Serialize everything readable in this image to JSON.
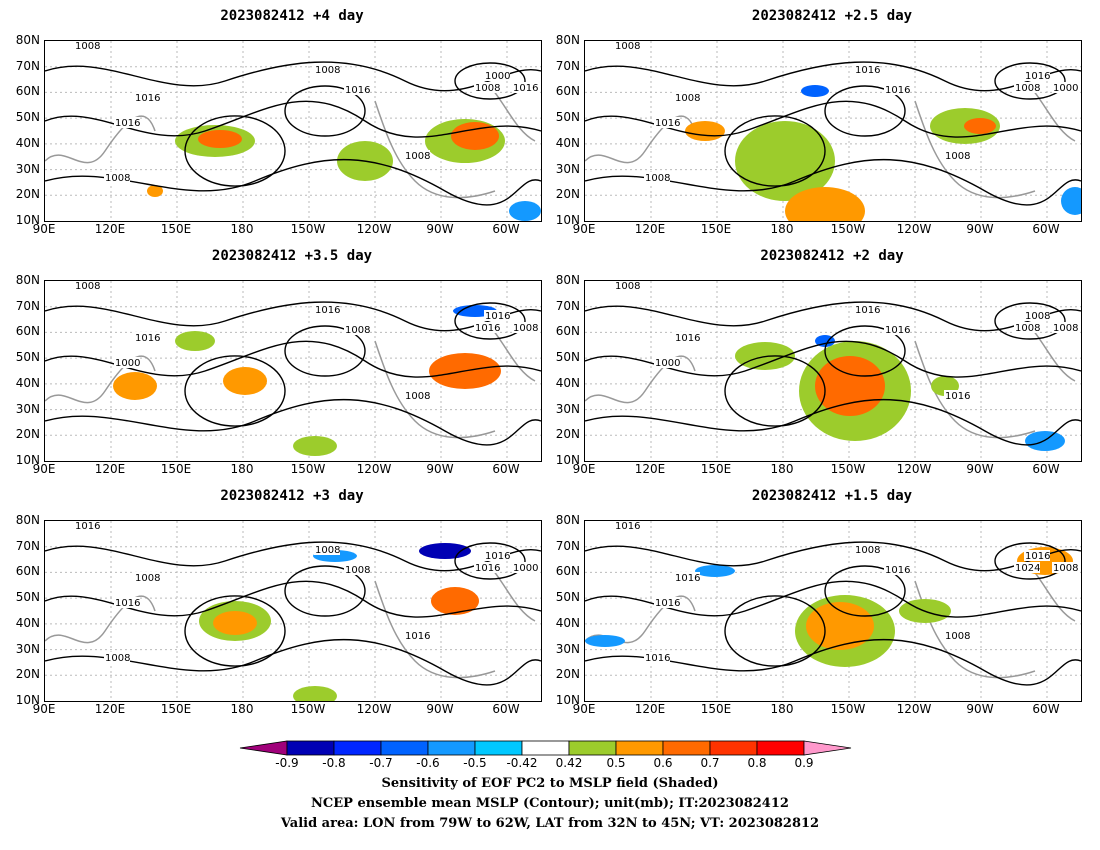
{
  "panels": [
    {
      "title": "2023082412 +4 day",
      "contours": [
        "1008",
        "1008",
        "1016",
        "1016",
        "1000",
        "1008",
        "1016",
        "1016",
        "1008",
        "1008"
      ]
    },
    {
      "title": "2023082412 +2.5 day",
      "contours": [
        "1008",
        "1016",
        "1008",
        "1016",
        "1016",
        "1008",
        "1000",
        "1016",
        "1008",
        "1008"
      ]
    },
    {
      "title": "2023082412 +3.5 day",
      "contours": [
        "1008",
        "1016",
        "1016",
        "1008",
        "1016",
        "1016",
        "1008",
        "1000",
        "1008"
      ]
    },
    {
      "title": "2023082412 +2 day",
      "contours": [
        "1008",
        "1016",
        "1016",
        "1016",
        "1008",
        "1008",
        "1008",
        "1000",
        "1016"
      ]
    },
    {
      "title": "2023082412 +3 day",
      "contours": [
        "1016",
        "1008",
        "1008",
        "1008",
        "1016",
        "1016",
        "1000",
        "1016",
        "1016",
        "1008"
      ]
    },
    {
      "title": "2023082412 +1.5 day",
      "contours": [
        "1016",
        "1008",
        "1016",
        "1016",
        "1016",
        "1024",
        "1008",
        "1016",
        "1008",
        "1016"
      ]
    }
  ],
  "lat_labels": [
    "80N",
    "70N",
    "60N",
    "50N",
    "40N",
    "30N",
    "20N",
    "10N"
  ],
  "lon_labels": [
    "90E",
    "120E",
    "150E",
    "180",
    "150W",
    "120W",
    "90W",
    "60W"
  ],
  "colorbar": {
    "colors": [
      "#a0007a",
      "#0000b4",
      "#0026ff",
      "#0062ff",
      "#1499ff",
      "#00c8ff",
      "#ffffff",
      "#9ccc2c",
      "#ff9900",
      "#ff6a00",
      "#ff3300",
      "#ff0000",
      "#ff99cc"
    ],
    "labels": [
      "-0.9",
      "-0.8",
      "-0.7",
      "-0.6",
      "-0.5",
      "-0.42",
      "0.42",
      "0.5",
      "0.6",
      "0.7",
      "0.8",
      "0.9"
    ]
  },
  "caption": {
    "line1": "Sensitivity of EOF PC2 to MSLP field (Shaded)",
    "line2": "NCEP ensemble mean MSLP (Contour); unit(mb); IT:2023082412",
    "line3": "Valid area: LON from 79W to 62W, LAT from 32N to 45N; VT: 2023082812"
  }
}
